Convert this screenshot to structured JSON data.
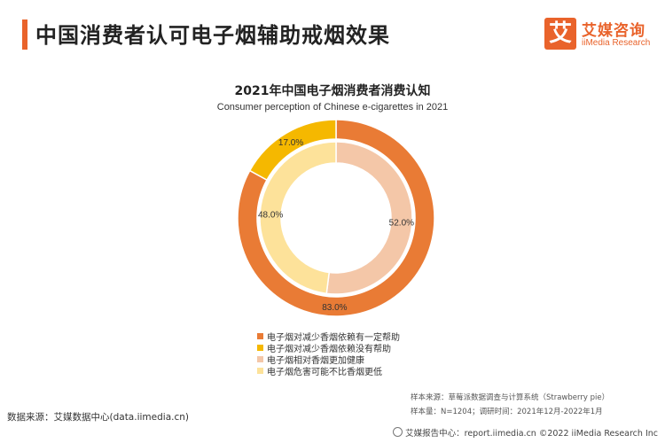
{
  "header": {
    "title": "中国消费者认可电子烟辅助戒烟效果"
  },
  "logo": {
    "box_glyph": "艾",
    "cn": "艾媒咨询",
    "en": "iiMedia Research",
    "color": "#e9632b"
  },
  "chart_data": {
    "type": "donut",
    "title": "2021年中国电子烟消费者消费认知",
    "subtitle": "Consumer perception of Chinese e-cigarettes in 2021",
    "rings": [
      {
        "ring": "outer",
        "slices": [
          {
            "name": "电子烟对减少香烟依赖有一定帮助",
            "value": 83.0,
            "label": "83.0%",
            "color": "#e97b35"
          },
          {
            "name": "电子烟对减少香烟依赖没有帮助",
            "value": 17.0,
            "label": "17.0%",
            "color": "#f5b800"
          }
        ]
      },
      {
        "ring": "inner",
        "slices": [
          {
            "name": "电子烟相对香烟更加健康",
            "value": 52.0,
            "label": "52.0%",
            "color": "#f4c7a8"
          },
          {
            "name": "电子烟危害可能不比香烟更低",
            "value": 48.0,
            "label": "48.0%",
            "color": "#fde29a"
          }
        ]
      }
    ],
    "legend": [
      {
        "label": "电子烟对减少香烟依赖有一定帮助",
        "color": "#e97b35"
      },
      {
        "label": "电子烟对减少香烟依赖没有帮助",
        "color": "#f5b800"
      },
      {
        "label": "电子烟相对香烟更加健康",
        "color": "#f4c7a8"
      },
      {
        "label": "电子烟危害可能不比香烟更低",
        "color": "#fde29a"
      }
    ],
    "legend_position": "bottom"
  },
  "notes": {
    "sample_source": "样本来源：草莓派数据调查与计算系统（Strawberry pie）",
    "sample_size": "样本量：N=1204；调研时间：2021年12月-2022年1月"
  },
  "source": "数据来源：艾媒数据中心(data.iimedia.cn)",
  "footer": "艾媒报告中心：report.iimedia.cn   ©2022  iiMedia Research  Inc"
}
